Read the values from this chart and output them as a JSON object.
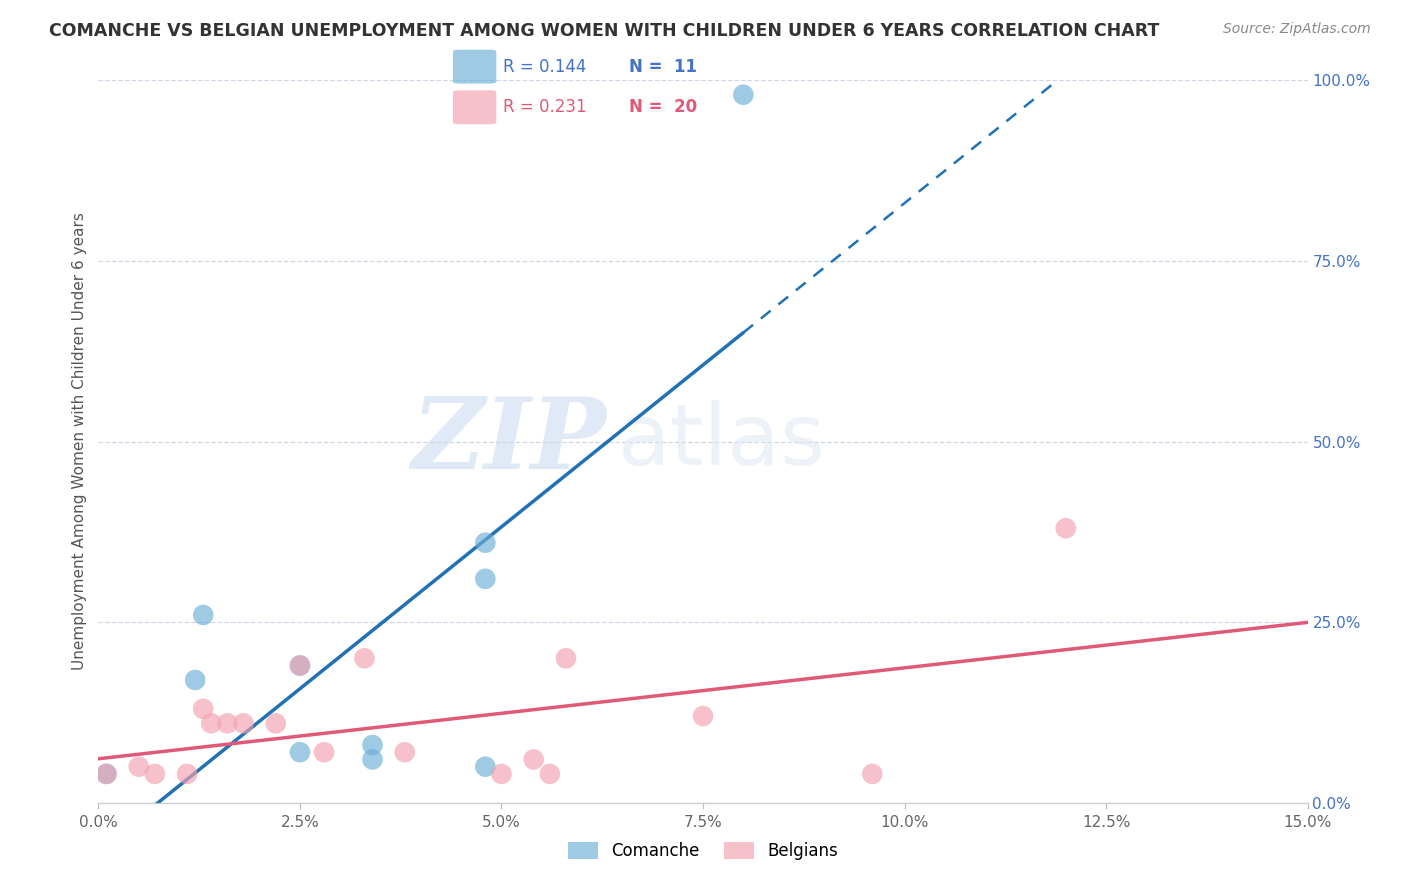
{
  "title": "COMANCHE VS BELGIAN UNEMPLOYMENT AMONG WOMEN WITH CHILDREN UNDER 6 YEARS CORRELATION CHART",
  "source": "Source: ZipAtlas.com",
  "ylabel": "Unemployment Among Women with Children Under 6 years",
  "xlabel_ticks": [
    "0.0%",
    "2.5%",
    "5.0%",
    "7.5%",
    "10.0%",
    "12.5%",
    "15.0%"
  ],
  "xlabel_vals": [
    0.0,
    2.5,
    5.0,
    7.5,
    10.0,
    12.5,
    15.0
  ],
  "ylabel_ticks_right": [
    "100.0%",
    "75.0%",
    "50.0%",
    "25.0%",
    "0.0%"
  ],
  "ylabel_vals_right": [
    100.0,
    75.0,
    50.0,
    25.0,
    0.0
  ],
  "xlim": [
    0.0,
    15.0
  ],
  "ylim": [
    0.0,
    100.0
  ],
  "comanche_x": [
    0.1,
    1.2,
    1.3,
    2.5,
    2.5,
    3.4,
    3.4,
    4.8,
    4.8,
    8.0,
    4.8
  ],
  "comanche_y": [
    4.0,
    17.0,
    26.0,
    19.0,
    7.0,
    8.0,
    6.0,
    36.0,
    5.0,
    98.0,
    31.0
  ],
  "belgians_x": [
    0.1,
    0.5,
    0.7,
    1.1,
    1.3,
    1.4,
    1.6,
    1.8,
    2.2,
    2.5,
    2.8,
    3.3,
    3.8,
    5.0,
    5.4,
    5.6,
    5.8,
    7.5,
    9.6,
    12.0
  ],
  "belgians_y": [
    4.0,
    5.0,
    4.0,
    4.0,
    13.0,
    11.0,
    11.0,
    11.0,
    11.0,
    19.0,
    7.0,
    20.0,
    7.0,
    4.0,
    6.0,
    4.0,
    20.0,
    12.0,
    4.0,
    38.0
  ],
  "comanche_color": "#6baed6",
  "belgians_color": "#f4a0b0",
  "comanche_line_color": "#2171b5",
  "belgians_line_color": "#e05a78",
  "R_comanche": 0.144,
  "N_comanche": 11,
  "R_belgians": 0.231,
  "N_belgians": 20,
  "watermark_ZIP": "ZIP",
  "watermark_atlas": "atlas",
  "background_color": "#ffffff",
  "grid_color": "#d0d8e8"
}
